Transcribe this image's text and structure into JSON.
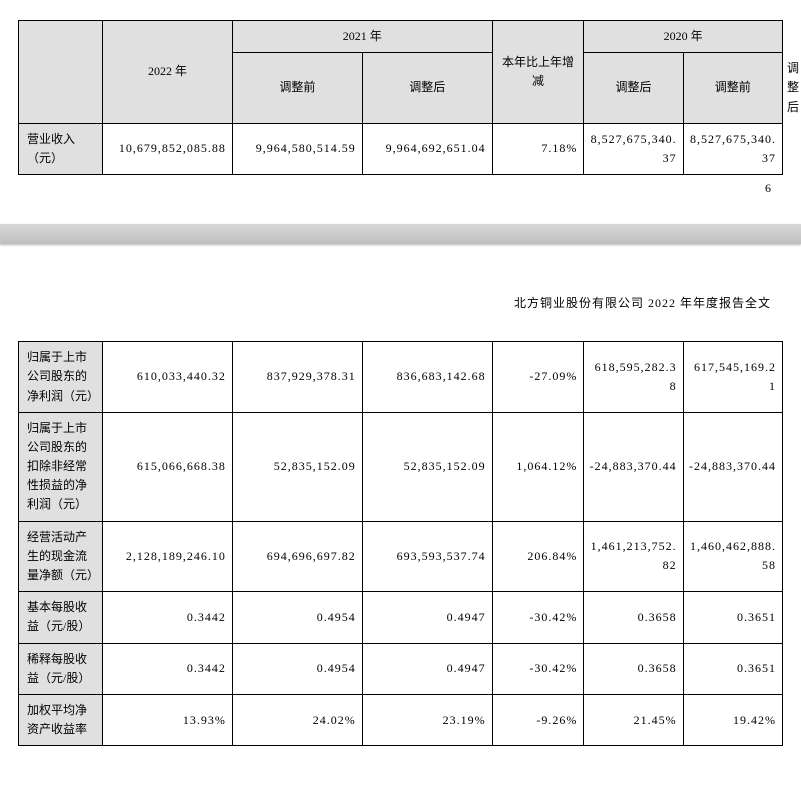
{
  "top_table": {
    "headers": {
      "y2022": "2022 年",
      "y2021": "2021 年",
      "change": "本年比上年增减",
      "y2020": "2020 年",
      "pre": "调整前",
      "post": "调整后"
    },
    "row1": {
      "label": "营业收入（元）",
      "v2022": "10,679,852,085.88",
      "v2021pre": "9,964,580,514.59",
      "v2021post": "9,964,692,651.04",
      "change": "7.18%",
      "v2020pre": "8,527,675,340.37",
      "v2020post": "8,527,675,340.37"
    }
  },
  "page_number_top": "6",
  "report_title": "北方铜业股份有限公司 2022 年年度报告全文",
  "bottom_table": {
    "rows": [
      {
        "label": "归属于上市公司股东的净利润（元）",
        "v2022": "610,033,440.32",
        "v2021pre": "837,929,378.31",
        "v2021post": "836,683,142.68",
        "change": "-27.09%",
        "v2020pre": "618,595,282.38",
        "v2020post": "617,545,169.21"
      },
      {
        "label": "归属于上市公司股东的扣除非经常性损益的净利润（元）",
        "v2022": "615,066,668.38",
        "v2021pre": "52,835,152.09",
        "v2021post": "52,835,152.09",
        "change": "1,064.12%",
        "v2020pre": "-24,883,370.44",
        "v2020post": "-24,883,370.44"
      },
      {
        "label": "经营活动产生的现金流量净额（元）",
        "v2022": "2,128,189,246.10",
        "v2021pre": "694,696,697.82",
        "v2021post": "693,593,537.74",
        "change": "206.84%",
        "v2020pre": "1,461,213,752.82",
        "v2020post": "1,460,462,888.58"
      },
      {
        "label": "基本每股收益（元/股）",
        "v2022": "0.3442",
        "v2021pre": "0.4954",
        "v2021post": "0.4947",
        "change": "-30.42%",
        "v2020pre": "0.3658",
        "v2020post": "0.3651"
      },
      {
        "label": "稀释每股收益（元/股）",
        "v2022": "0.3442",
        "v2021pre": "0.4954",
        "v2021post": "0.4947",
        "change": "-30.42%",
        "v2020pre": "0.3658",
        "v2020post": "0.3651"
      },
      {
        "label": "加权平均净资产收益率",
        "v2022": "13.93%",
        "v2021pre": "24.02%",
        "v2021post": "23.19%",
        "change": "-9.26%",
        "v2020pre": "21.45%",
        "v2020post": "19.42%"
      }
    ]
  }
}
